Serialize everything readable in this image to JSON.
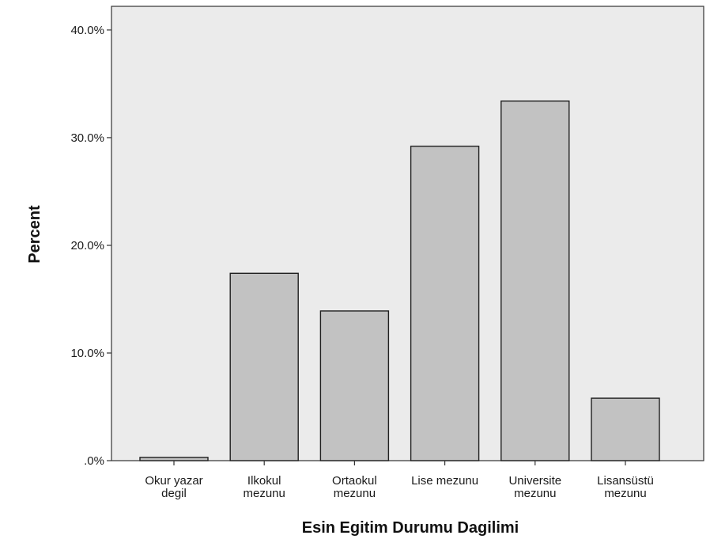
{
  "chart_data": {
    "type": "bar",
    "title": "",
    "xlabel": "Esin Egitim Durumu Dagilimi",
    "ylabel": "Percent",
    "categories": [
      [
        "Okur yazar",
        "degil"
      ],
      [
        "Ilkokul",
        "mezunu"
      ],
      [
        "Ortaokul",
        "mezunu"
      ],
      [
        "Lise mezunu"
      ],
      [
        "Universite",
        "mezunu"
      ],
      [
        "Lisansüstü",
        "mezunu"
      ]
    ],
    "values": [
      0.3,
      17.4,
      13.9,
      29.2,
      33.4,
      5.8
    ],
    "ylim": [
      0,
      42.2
    ],
    "yticks": [
      0,
      10,
      20,
      30,
      40
    ],
    "ytick_labels": [
      ".0%",
      "10.0%",
      "20.0%",
      "30.0%",
      "40.0%"
    ],
    "grid": false,
    "colors": {
      "plot_background": "#ebebeb",
      "bar_fill": "#c2c2c2",
      "bar_stroke": "#1f1f1f",
      "axis": "#333333"
    }
  }
}
